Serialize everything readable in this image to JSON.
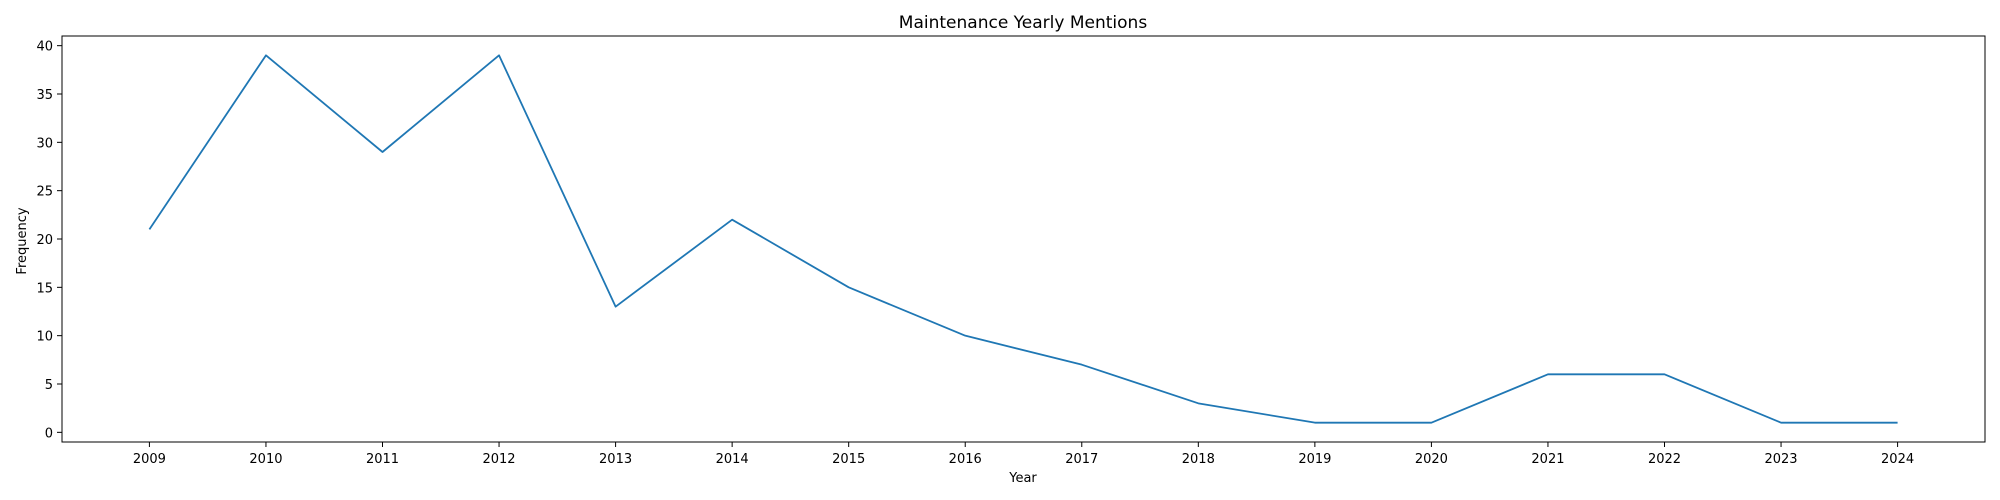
{
  "chart_data": {
    "type": "line",
    "title": "Maintenance Yearly Mentions",
    "xlabel": "Year",
    "ylabel": "Frequency",
    "x": [
      2009,
      2010,
      2011,
      2012,
      2013,
      2014,
      2015,
      2016,
      2017,
      2018,
      2019,
      2020,
      2021,
      2022,
      2023,
      2024
    ],
    "series": [
      {
        "values": [
          21,
          39,
          29,
          39,
          13,
          22,
          15,
          10,
          7,
          3,
          1,
          1,
          6,
          6,
          1,
          1
        ],
        "color": "#1f77b4"
      }
    ],
    "xlim": [
      2008.25,
      2024.75
    ],
    "ylim": [
      -1,
      41
    ],
    "yticks": [
      0,
      5,
      10,
      15,
      20,
      25,
      30,
      35,
      40
    ],
    "grid": false,
    "legend": false
  }
}
